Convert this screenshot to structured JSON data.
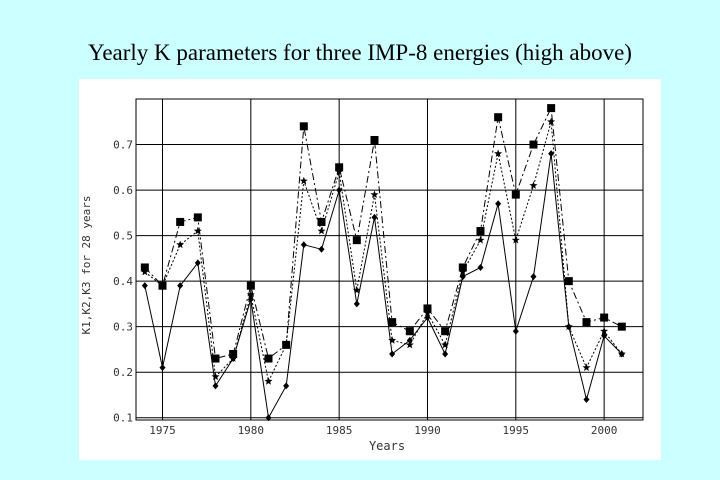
{
  "page": {
    "title": "Yearly K parameters for three IMP-8 energies (high above)"
  },
  "colors": {
    "background": "#ccffff",
    "panel": "#ffffff",
    "grid": "#000000",
    "series": "#000000"
  },
  "chart_data": {
    "type": "line",
    "title": "Yearly K parameters for three IMP-8 energies (high above)",
    "xlabel": "Years",
    "ylabel": "K1,K2,K3 for 28 years",
    "xlim": [
      1973.5,
      2002.2
    ],
    "ylim": [
      0.095,
      0.8
    ],
    "xticks": [
      1975,
      1980,
      1985,
      1990,
      1995,
      2000
    ],
    "yticks": [
      0.1,
      0.2,
      0.3,
      0.4,
      0.5,
      0.6,
      0.7
    ],
    "ytick_labels": [
      "0.1",
      "0.2",
      "0.3",
      "0.4",
      "0.5",
      "0.6",
      "0.7"
    ],
    "grid": true,
    "legend": "none",
    "x": [
      1974,
      1975,
      1976,
      1977,
      1978,
      1979,
      1980,
      1981,
      1982,
      1983,
      1984,
      1985,
      1986,
      1987,
      1988,
      1989,
      1990,
      1991,
      1992,
      1993,
      1994,
      1995,
      1996,
      1997,
      1998,
      1999,
      2000,
      2001
    ],
    "series": [
      {
        "marker": "square",
        "line_style": "dash-dot",
        "values": [
          0.43,
          0.39,
          0.53,
          0.54,
          0.23,
          0.24,
          0.39,
          0.23,
          0.26,
          0.74,
          0.53,
          0.65,
          0.49,
          0.71,
          0.31,
          0.29,
          0.34,
          0.29,
          0.43,
          0.51,
          0.76,
          0.59,
          0.7,
          0.78,
          0.4,
          0.31,
          0.32,
          0.3
        ]
      },
      {
        "marker": "star",
        "line_style": "dotted",
        "values": [
          0.42,
          0.39,
          0.48,
          0.51,
          0.19,
          0.23,
          0.37,
          0.18,
          0.26,
          0.62,
          0.51,
          0.64,
          0.38,
          0.59,
          0.27,
          0.26,
          0.33,
          0.26,
          0.42,
          0.49,
          0.68,
          0.49,
          0.61,
          0.75,
          0.3,
          0.21,
          0.29,
          0.24
        ]
      },
      {
        "marker": "diamond",
        "line_style": "solid",
        "values": [
          0.39,
          0.21,
          0.39,
          0.44,
          0.17,
          0.23,
          0.36,
          0.1,
          0.17,
          0.48,
          0.47,
          0.6,
          0.35,
          0.54,
          0.24,
          0.27,
          0.32,
          0.24,
          0.41,
          0.43,
          0.57,
          0.29,
          0.41,
          0.68,
          0.3,
          0.14,
          0.28,
          0.24
        ]
      }
    ]
  }
}
